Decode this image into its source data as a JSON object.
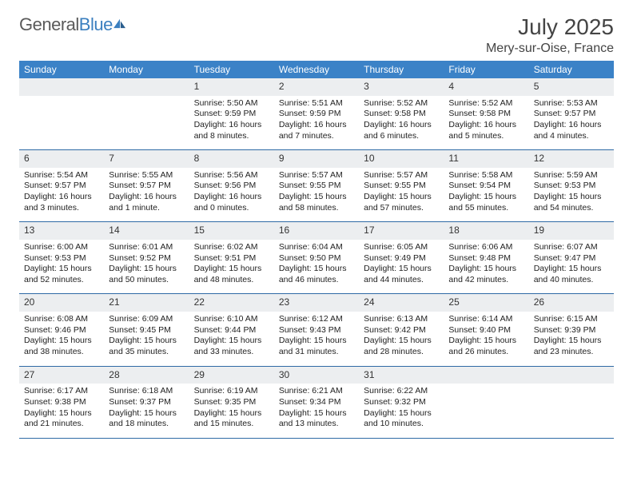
{
  "brand": {
    "part1": "General",
    "part2": "Blue"
  },
  "title": "July 2025",
  "location": "Mery-sur-Oise, France",
  "colors": {
    "header_bg": "#3b82c7",
    "header_text": "#ffffff",
    "rule": "#2f6aa5",
    "daynum_bg": "#eceef0",
    "text": "#222222"
  },
  "typography": {
    "title_fontsize": 28,
    "location_fontsize": 16,
    "header_fontsize": 12,
    "cell_fontsize": 10.5
  },
  "layout": {
    "columns": 7,
    "rows": 5,
    "leading_blanks": 2
  },
  "day_headers": [
    "Sunday",
    "Monday",
    "Tuesday",
    "Wednesday",
    "Thursday",
    "Friday",
    "Saturday"
  ],
  "labels": {
    "sunrise": "Sunrise:",
    "sunset": "Sunset:",
    "daylight": "Daylight:"
  },
  "days": [
    {
      "n": "1",
      "sunrise": "5:50 AM",
      "sunset": "9:59 PM",
      "daylight": "16 hours and 8 minutes."
    },
    {
      "n": "2",
      "sunrise": "5:51 AM",
      "sunset": "9:59 PM",
      "daylight": "16 hours and 7 minutes."
    },
    {
      "n": "3",
      "sunrise": "5:52 AM",
      "sunset": "9:58 PM",
      "daylight": "16 hours and 6 minutes."
    },
    {
      "n": "4",
      "sunrise": "5:52 AM",
      "sunset": "9:58 PM",
      "daylight": "16 hours and 5 minutes."
    },
    {
      "n": "5",
      "sunrise": "5:53 AM",
      "sunset": "9:57 PM",
      "daylight": "16 hours and 4 minutes."
    },
    {
      "n": "6",
      "sunrise": "5:54 AM",
      "sunset": "9:57 PM",
      "daylight": "16 hours and 3 minutes."
    },
    {
      "n": "7",
      "sunrise": "5:55 AM",
      "sunset": "9:57 PM",
      "daylight": "16 hours and 1 minute."
    },
    {
      "n": "8",
      "sunrise": "5:56 AM",
      "sunset": "9:56 PM",
      "daylight": "16 hours and 0 minutes."
    },
    {
      "n": "9",
      "sunrise": "5:57 AM",
      "sunset": "9:55 PM",
      "daylight": "15 hours and 58 minutes."
    },
    {
      "n": "10",
      "sunrise": "5:57 AM",
      "sunset": "9:55 PM",
      "daylight": "15 hours and 57 minutes."
    },
    {
      "n": "11",
      "sunrise": "5:58 AM",
      "sunset": "9:54 PM",
      "daylight": "15 hours and 55 minutes."
    },
    {
      "n": "12",
      "sunrise": "5:59 AM",
      "sunset": "9:53 PM",
      "daylight": "15 hours and 54 minutes."
    },
    {
      "n": "13",
      "sunrise": "6:00 AM",
      "sunset": "9:53 PM",
      "daylight": "15 hours and 52 minutes."
    },
    {
      "n": "14",
      "sunrise": "6:01 AM",
      "sunset": "9:52 PM",
      "daylight": "15 hours and 50 minutes."
    },
    {
      "n": "15",
      "sunrise": "6:02 AM",
      "sunset": "9:51 PM",
      "daylight": "15 hours and 48 minutes."
    },
    {
      "n": "16",
      "sunrise": "6:04 AM",
      "sunset": "9:50 PM",
      "daylight": "15 hours and 46 minutes."
    },
    {
      "n": "17",
      "sunrise": "6:05 AM",
      "sunset": "9:49 PM",
      "daylight": "15 hours and 44 minutes."
    },
    {
      "n": "18",
      "sunrise": "6:06 AM",
      "sunset": "9:48 PM",
      "daylight": "15 hours and 42 minutes."
    },
    {
      "n": "19",
      "sunrise": "6:07 AM",
      "sunset": "9:47 PM",
      "daylight": "15 hours and 40 minutes."
    },
    {
      "n": "20",
      "sunrise": "6:08 AM",
      "sunset": "9:46 PM",
      "daylight": "15 hours and 38 minutes."
    },
    {
      "n": "21",
      "sunrise": "6:09 AM",
      "sunset": "9:45 PM",
      "daylight": "15 hours and 35 minutes."
    },
    {
      "n": "22",
      "sunrise": "6:10 AM",
      "sunset": "9:44 PM",
      "daylight": "15 hours and 33 minutes."
    },
    {
      "n": "23",
      "sunrise": "6:12 AM",
      "sunset": "9:43 PM",
      "daylight": "15 hours and 31 minutes."
    },
    {
      "n": "24",
      "sunrise": "6:13 AM",
      "sunset": "9:42 PM",
      "daylight": "15 hours and 28 minutes."
    },
    {
      "n": "25",
      "sunrise": "6:14 AM",
      "sunset": "9:40 PM",
      "daylight": "15 hours and 26 minutes."
    },
    {
      "n": "26",
      "sunrise": "6:15 AM",
      "sunset": "9:39 PM",
      "daylight": "15 hours and 23 minutes."
    },
    {
      "n": "27",
      "sunrise": "6:17 AM",
      "sunset": "9:38 PM",
      "daylight": "15 hours and 21 minutes."
    },
    {
      "n": "28",
      "sunrise": "6:18 AM",
      "sunset": "9:37 PM",
      "daylight": "15 hours and 18 minutes."
    },
    {
      "n": "29",
      "sunrise": "6:19 AM",
      "sunset": "9:35 PM",
      "daylight": "15 hours and 15 minutes."
    },
    {
      "n": "30",
      "sunrise": "6:21 AM",
      "sunset": "9:34 PM",
      "daylight": "15 hours and 13 minutes."
    },
    {
      "n": "31",
      "sunrise": "6:22 AM",
      "sunset": "9:32 PM",
      "daylight": "15 hours and 10 minutes."
    }
  ]
}
